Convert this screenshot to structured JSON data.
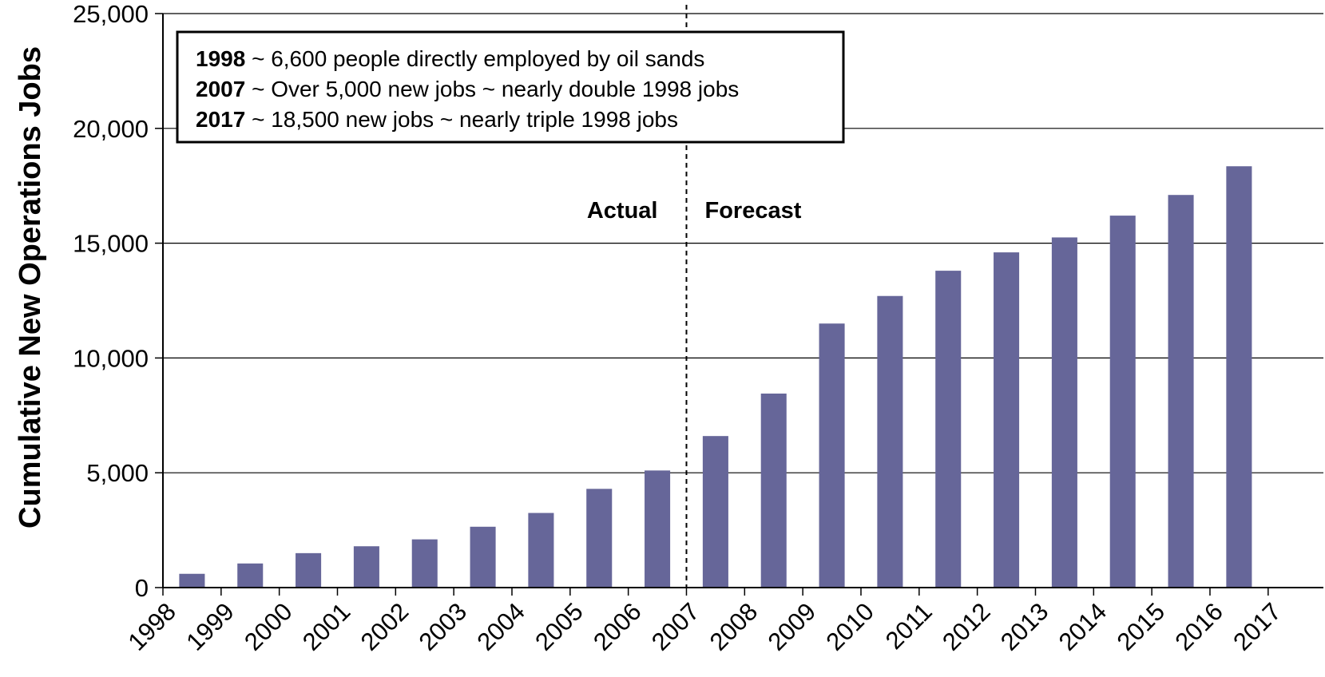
{
  "chart_data": {
    "type": "bar",
    "ylabel": "Cumulative New Operations Jobs",
    "xlabel": "",
    "ylim": [
      0,
      25000
    ],
    "yticks": [
      0,
      5000,
      10000,
      15000,
      20000,
      25000
    ],
    "ytick_labels": [
      "0",
      "5,000",
      "10,000",
      "15,000",
      "20,000",
      "25,000"
    ],
    "categories": [
      "1998",
      "1999",
      "2000",
      "2001",
      "2002",
      "2003",
      "2004",
      "2005",
      "2006",
      "2007",
      "2008",
      "2009",
      "2010",
      "2011",
      "2012",
      "2013",
      "2014",
      "2015",
      "2016",
      "2017"
    ],
    "values": [
      600,
      1050,
      1500,
      1800,
      2100,
      2650,
      3250,
      4300,
      5100,
      6600,
      8450,
      11500,
      12700,
      13800,
      14600,
      15250,
      16200,
      17100,
      18350,
      null
    ],
    "bar_color": "#666699",
    "grid": true,
    "divider_after_category": "2007",
    "region_labels": {
      "left": "Actual",
      "right": "Forecast"
    },
    "annotation": [
      {
        "bold": "1998",
        "text": " ~ 6,600 people directly employed by oil sands"
      },
      {
        "bold": "2007",
        "text": " ~ Over 5,000 new jobs ~ nearly double 1998 jobs"
      },
      {
        "bold": "2017",
        "text": " ~ 18,500 new jobs ~ nearly triple 1998 jobs"
      }
    ]
  }
}
